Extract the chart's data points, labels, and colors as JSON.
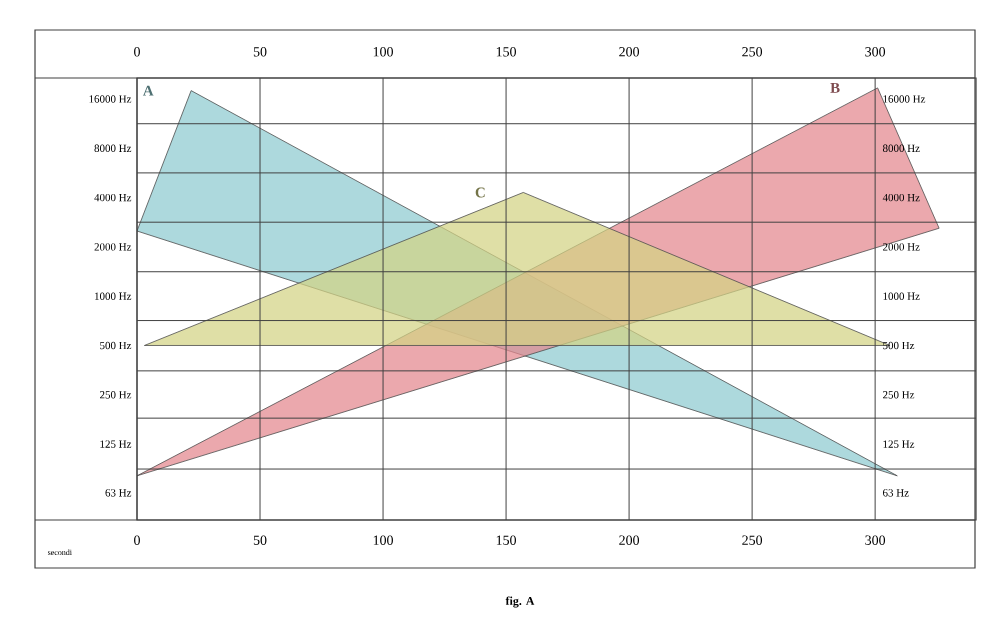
{
  "chart_data": {
    "type": "area",
    "xlabel": "secondi",
    "annotations": [
      "fig. A"
    ],
    "xlim": [
      0,
      341
    ],
    "ylim": [
      43,
      21500
    ],
    "x2lim": [
      0,
      341
    ],
    "log": true,
    "grid": true,
    "xticks": [
      0,
      50,
      100,
      150,
      200,
      250,
      300
    ],
    "x2ticks": [
      0,
      50,
      100,
      150,
      200,
      250,
      300
    ],
    "yticks": [
      {
        "value": 16000,
        "label": "16000 Hz"
      },
      {
        "value": 8000,
        "label": "8000 Hz"
      },
      {
        "value": 4000,
        "label": "4000 Hz"
      },
      {
        "value": 2000,
        "label": "2000 Hz"
      },
      {
        "value": 1000,
        "label": "1000 Hz"
      },
      {
        "value": 500,
        "label": "500 Hz"
      },
      {
        "value": 250,
        "label": "250 Hz"
      },
      {
        "value": 125,
        "label": "125 Hz"
      },
      {
        "value": 63,
        "label": "63 Hz"
      },
      {
        "value": 11300,
        "label": null
      },
      {
        "value": 5660,
        "label": null
      },
      {
        "value": 2830,
        "label": null
      },
      {
        "value": 1410,
        "label": null
      },
      {
        "value": 710,
        "label": null
      },
      {
        "value": 350,
        "label": null
      },
      {
        "value": 180,
        "label": null
      },
      {
        "value": 88,
        "label": null
      }
    ],
    "series": [
      {
        "name": "A",
        "color": "#8ecbd0",
        "x": [
          22,
          0,
          309
        ],
        "values": [
          18000,
          2500,
          80
        ]
      },
      {
        "name": "B",
        "color": "#e3868e",
        "x": [
          0,
          301,
          326
        ],
        "values": [
          80,
          18700,
          2600
        ]
      },
      {
        "name": "C",
        "color": "#d2d283",
        "x": [
          3,
          157,
          306
        ],
        "values": [
          500,
          4300,
          500
        ]
      }
    ]
  }
}
